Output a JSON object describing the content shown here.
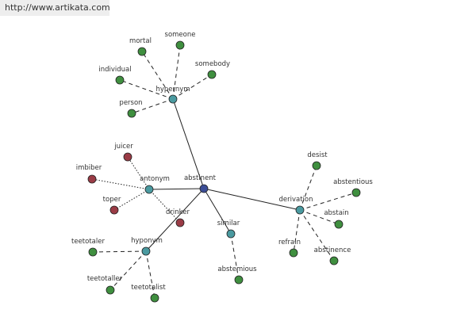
{
  "header": {
    "url": "http://www.artikata.com"
  },
  "nodes": [
    {
      "label": "abstinent"
    },
    {
      "label": "hypernym"
    },
    {
      "label": "antonym"
    },
    {
      "label": "hyponym"
    },
    {
      "label": "similar"
    },
    {
      "label": "derivation"
    },
    {
      "label": "mortal"
    },
    {
      "label": "someone"
    },
    {
      "label": "individual"
    },
    {
      "label": "somebody"
    },
    {
      "label": "person"
    },
    {
      "label": "juicer"
    },
    {
      "label": "imbiber"
    },
    {
      "label": "toper"
    },
    {
      "label": "drinker"
    },
    {
      "label": "teetotaler"
    },
    {
      "label": "teetotaller"
    },
    {
      "label": "teetotalist"
    },
    {
      "label": "abstemious"
    },
    {
      "label": "desist"
    },
    {
      "label": "abstentious"
    },
    {
      "label": "abstain"
    },
    {
      "label": "refrain"
    },
    {
      "label": "abstinence"
    }
  ]
}
